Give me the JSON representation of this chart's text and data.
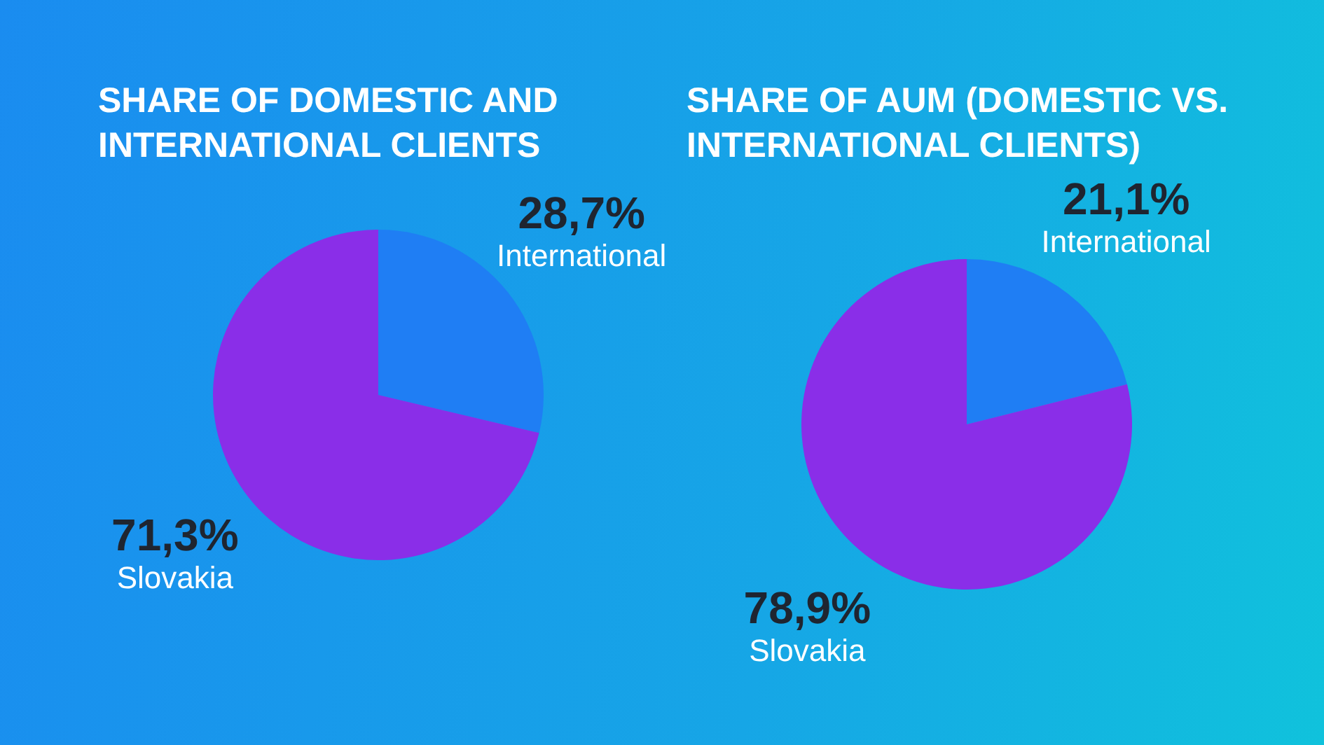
{
  "chart_data": [
    {
      "type": "pie",
      "title": "SHARE OF DOMESTIC AND INTERNATIONAL CLIENTS",
      "categories": [
        "International",
        "Slovakia"
      ],
      "values": [
        28.7,
        71.3
      ],
      "colors": [
        "#1f7ef4",
        "#8a2ee8"
      ],
      "value_labels": [
        "28,7%",
        "71,3%"
      ]
    },
    {
      "type": "pie",
      "title": "SHARE OF AUM (DOMESTIC VS. INTERNATIONAL CLIENTS)",
      "categories": [
        "International",
        "Slovakia"
      ],
      "values": [
        21.1,
        78.9
      ],
      "colors": [
        "#1f7ef4",
        "#8a2ee8"
      ],
      "value_labels": [
        "21,1%",
        "78,9%"
      ]
    }
  ]
}
